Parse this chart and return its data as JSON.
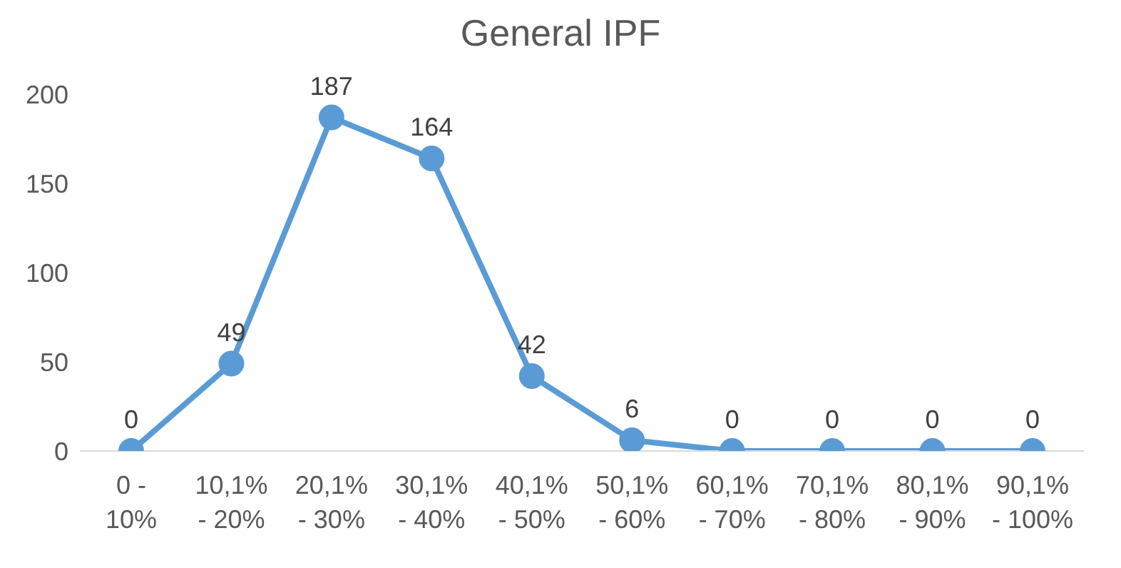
{
  "chart_data": {
    "type": "line",
    "title": "General IPF",
    "categories": [
      "0 - 10%",
      "10,1% - 20%",
      "20,1% - 30%",
      "30,1% - 40%",
      "40,1% - 50%",
      "50,1% - 60%",
      "60,1% - 70%",
      "70,1% - 80%",
      "80,1% - 90%",
      "90,1% - 100%"
    ],
    "series": [
      {
        "color": "#5b9bd5",
        "values": [
          0,
          49,
          187,
          164,
          42,
          6,
          0,
          0,
          0,
          0
        ]
      }
    ],
    "ylim": [
      0,
      200
    ],
    "yticks": [
      0,
      50,
      100,
      150,
      200
    ],
    "marker": "circle",
    "line_style": "solid",
    "data_labels": true
  }
}
